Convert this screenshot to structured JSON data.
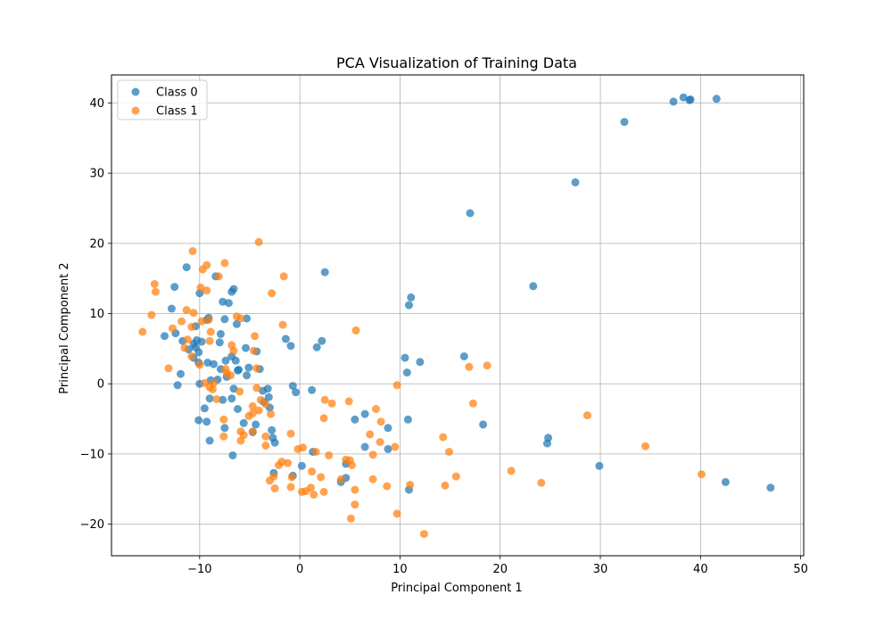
{
  "chart_data": {
    "type": "scatter",
    "title": "PCA Visualization of Training Data",
    "xlabel": "Principal Component 1",
    "ylabel": "Principal Component 2",
    "xlim": [
      -18.8,
      50.3
    ],
    "ylim": [
      -24.5,
      44.0
    ],
    "xticks": [
      -10,
      0,
      10,
      20,
      30,
      40,
      50
    ],
    "yticks": [
      -20,
      -10,
      0,
      10,
      20,
      30,
      40
    ],
    "xtick_labels": [
      "−10",
      "0",
      "10",
      "20",
      "30",
      "40",
      "50"
    ],
    "ytick_labels": [
      "−20",
      "−10",
      "0",
      "10",
      "20",
      "30",
      "40"
    ],
    "grid": true,
    "legend_position": "top-left",
    "series": [
      {
        "name": "Class 0",
        "color": "#1f77b4",
        "points": [
          [
            38.3,
            40.8
          ],
          [
            37.3,
            40.2
          ],
          [
            39.0,
            40.5
          ],
          [
            41.6,
            40.6
          ],
          [
            38.9,
            40.4
          ],
          [
            32.4,
            37.3
          ],
          [
            27.5,
            28.7
          ],
          [
            17.0,
            24.3
          ],
          [
            23.3,
            13.9
          ],
          [
            2.5,
            15.9
          ],
          [
            11.1,
            12.3
          ],
          [
            10.9,
            11.2
          ],
          [
            -11.3,
            16.6
          ],
          [
            -12.5,
            13.8
          ],
          [
            -8.4,
            15.3
          ],
          [
            -6.6,
            13.5
          ],
          [
            -6.8,
            13.1
          ],
          [
            -10.0,
            12.9
          ],
          [
            -12.8,
            10.7
          ],
          [
            -7.7,
            11.7
          ],
          [
            -7.1,
            11.5
          ],
          [
            -9.3,
            9.1
          ],
          [
            -7.5,
            9.2
          ],
          [
            -5.3,
            9.3
          ],
          [
            -6.3,
            8.5
          ],
          [
            -9.1,
            9.4
          ],
          [
            -10.4,
            8.2
          ],
          [
            -13.5,
            6.8
          ],
          [
            -12.4,
            7.2
          ],
          [
            -7.9,
            7.1
          ],
          [
            -11.7,
            6.1
          ],
          [
            -10.3,
            6.2
          ],
          [
            -9.8,
            6.0
          ],
          [
            -10.6,
            5.7
          ],
          [
            -11.1,
            4.9
          ],
          [
            -10.4,
            5.2
          ],
          [
            -8.0,
            5.9
          ],
          [
            -5.4,
            5.1
          ],
          [
            -4.3,
            4.6
          ],
          [
            -6.8,
            3.9
          ],
          [
            -7.4,
            3.3
          ],
          [
            -10.1,
            4.5
          ],
          [
            -10.6,
            3.7
          ],
          [
            -10.1,
            3.0
          ],
          [
            -9.2,
            3.0
          ],
          [
            -8.6,
            2.8
          ],
          [
            -6.4,
            3.3
          ],
          [
            -5.1,
            2.3
          ],
          [
            -6.1,
            2.0
          ],
          [
            -4.0,
            2.1
          ],
          [
            -7.9,
            2.1
          ],
          [
            -6.2,
            1.9
          ],
          [
            -5.3,
            1.2
          ],
          [
            -11.9,
            1.4
          ],
          [
            -7.3,
            1.0
          ],
          [
            -8.2,
            0.6
          ],
          [
            -8.9,
            0.5
          ],
          [
            -10.0,
            0.0
          ],
          [
            -12.2,
            -0.2
          ],
          [
            -6.6,
            -0.7
          ],
          [
            -3.2,
            -0.7
          ],
          [
            -3.7,
            -1.0
          ],
          [
            -0.7,
            -0.3
          ],
          [
            -0.4,
            -1.2
          ],
          [
            1.2,
            -0.9
          ],
          [
            -6.8,
            -2.1
          ],
          [
            -9.0,
            -2.1
          ],
          [
            -7.7,
            -2.3
          ],
          [
            -3.6,
            -2.6
          ],
          [
            -3.1,
            -1.9
          ],
          [
            -9.5,
            -3.5
          ],
          [
            -6.2,
            -3.6
          ],
          [
            -3.0,
            -3.4
          ],
          [
            -10.1,
            -5.2
          ],
          [
            -9.3,
            -5.4
          ],
          [
            -5.6,
            -5.6
          ],
          [
            -4.4,
            -5.8
          ],
          [
            -7.5,
            -6.3
          ],
          [
            -4.7,
            -6.9
          ],
          [
            -2.8,
            -6.6
          ],
          [
            -2.7,
            -7.7
          ],
          [
            -9.0,
            -8.1
          ],
          [
            -2.5,
            -8.4
          ],
          [
            -6.7,
            -10.2
          ],
          [
            -0.7,
            -13.1
          ],
          [
            -2.6,
            -12.7
          ],
          [
            0.2,
            -11.7
          ],
          [
            1.3,
            -9.7
          ],
          [
            -1.4,
            6.4
          ],
          [
            -0.9,
            5.4
          ],
          [
            2.2,
            6.1
          ],
          [
            1.7,
            5.2
          ],
          [
            10.5,
            3.7
          ],
          [
            12.0,
            3.1
          ],
          [
            16.4,
            3.9
          ],
          [
            10.7,
            1.6
          ],
          [
            4.6,
            -11.4
          ],
          [
            4.6,
            -13.4
          ],
          [
            4.1,
            -14.0
          ],
          [
            5.5,
            -5.1
          ],
          [
            6.5,
            -4.3
          ],
          [
            6.5,
            -9.0
          ],
          [
            8.8,
            -6.3
          ],
          [
            8.8,
            -9.3
          ],
          [
            10.8,
            -5.1
          ],
          [
            10.9,
            -15.1
          ],
          [
            18.3,
            -5.8
          ],
          [
            24.8,
            -7.7
          ],
          [
            24.7,
            -8.5
          ],
          [
            29.9,
            -11.7
          ],
          [
            42.5,
            -14.0
          ],
          [
            47.0,
            -14.8
          ]
        ]
      },
      {
        "name": "Class 1",
        "color": "#ff7f0e",
        "points": [
          [
            -4.1,
            20.2
          ],
          [
            -10.7,
            18.9
          ],
          [
            -7.5,
            17.2
          ],
          [
            -9.3,
            16.9
          ],
          [
            -9.7,
            16.3
          ],
          [
            -8.1,
            15.3
          ],
          [
            -1.6,
            15.3
          ],
          [
            -14.5,
            14.2
          ],
          [
            -14.4,
            13.1
          ],
          [
            -9.9,
            13.7
          ],
          [
            -9.3,
            13.3
          ],
          [
            -2.8,
            12.9
          ],
          [
            -11.3,
            10.5
          ],
          [
            -10.6,
            10.1
          ],
          [
            -14.8,
            9.8
          ],
          [
            -6.3,
            9.6
          ],
          [
            -9.1,
            9.1
          ],
          [
            -9.8,
            8.9
          ],
          [
            -11.8,
            8.9
          ],
          [
            -5.9,
            9.3
          ],
          [
            -1.7,
            8.4
          ],
          [
            -10.8,
            8.1
          ],
          [
            -12.7,
            7.9
          ],
          [
            -15.7,
            7.4
          ],
          [
            -8.9,
            7.4
          ],
          [
            5.6,
            7.6
          ],
          [
            -4.5,
            6.8
          ],
          [
            -11.2,
            6.3
          ],
          [
            -9.0,
            6.1
          ],
          [
            -11.5,
            5.1
          ],
          [
            -6.8,
            5.5
          ],
          [
            -6.6,
            4.7
          ],
          [
            -4.6,
            4.7
          ],
          [
            -10.8,
            3.9
          ],
          [
            -10.0,
            2.7
          ],
          [
            -13.1,
            2.2
          ],
          [
            -7.4,
            2.1
          ],
          [
            -4.3,
            2.2
          ],
          [
            18.7,
            2.6
          ],
          [
            16.9,
            2.4
          ],
          [
            -7.3,
            1.5
          ],
          [
            -6.9,
            1.2
          ],
          [
            -8.6,
            0.1
          ],
          [
            -9.5,
            0.1
          ],
          [
            -9.0,
            -0.5
          ],
          [
            -8.7,
            -0.8
          ],
          [
            -6.0,
            -1.1
          ],
          [
            -4.3,
            -0.6
          ],
          [
            -8.3,
            -2.2
          ],
          [
            -3.9,
            -2.3
          ],
          [
            -3.4,
            -2.9
          ],
          [
            2.5,
            -2.3
          ],
          [
            3.2,
            -2.8
          ],
          [
            4.9,
            -2.5
          ],
          [
            9.7,
            -0.2
          ],
          [
            17.3,
            -2.8
          ],
          [
            -4.7,
            -3.2
          ],
          [
            -4.1,
            -3.8
          ],
          [
            -4.7,
            -4.2
          ],
          [
            -2.9,
            -4.3
          ],
          [
            -5.1,
            -4.6
          ],
          [
            -7.6,
            -5.1
          ],
          [
            2.4,
            -4.9
          ],
          [
            8.1,
            -5.4
          ],
          [
            7.6,
            -3.6
          ],
          [
            28.7,
            -4.5
          ],
          [
            -7.6,
            -7.5
          ],
          [
            -5.9,
            -6.8
          ],
          [
            -5.6,
            -7.3
          ],
          [
            -4.7,
            -6.8
          ],
          [
            -5.9,
            -8.1
          ],
          [
            -3.4,
            -7.5
          ],
          [
            -0.9,
            -7.1
          ],
          [
            7.0,
            -7.2
          ],
          [
            8.0,
            -8.3
          ],
          [
            14.3,
            -7.6
          ],
          [
            -3.4,
            -8.8
          ],
          [
            -0.2,
            -9.3
          ],
          [
            0.3,
            -9.1
          ],
          [
            9.5,
            -9.0
          ],
          [
            1.6,
            -9.7
          ],
          [
            2.9,
            -10.2
          ],
          [
            4.6,
            -10.8
          ],
          [
            5.0,
            -10.9
          ],
          [
            5.2,
            -11.6
          ],
          [
            7.3,
            -10.1
          ],
          [
            14.9,
            -9.7
          ],
          [
            34.5,
            -8.9
          ],
          [
            -1.8,
            -11.1
          ],
          [
            -2.1,
            -11.6
          ],
          [
            -1.2,
            -11.3
          ],
          [
            1.2,
            -12.5
          ],
          [
            2.1,
            -13.3
          ],
          [
            -2.6,
            -13.2
          ],
          [
            -3.0,
            -13.8
          ],
          [
            -0.8,
            -13.3
          ],
          [
            4.1,
            -13.6
          ],
          [
            7.3,
            -13.6
          ],
          [
            15.6,
            -13.2
          ],
          [
            21.1,
            -12.4
          ],
          [
            -2.5,
            -14.9
          ],
          [
            -0.9,
            -14.7
          ],
          [
            0.2,
            -15.4
          ],
          [
            0.6,
            -15.3
          ],
          [
            1.1,
            -14.8
          ],
          [
            1.4,
            -15.8
          ],
          [
            2.4,
            -15.4
          ],
          [
            5.5,
            -15.1
          ],
          [
            8.7,
            -14.6
          ],
          [
            11.0,
            -14.4
          ],
          [
            14.5,
            -14.5
          ],
          [
            24.1,
            -14.1
          ],
          [
            40.1,
            -12.9
          ],
          [
            5.5,
            -17.2
          ],
          [
            5.1,
            -19.2
          ],
          [
            9.7,
            -18.5
          ],
          [
            12.4,
            -21.4
          ]
        ]
      }
    ]
  }
}
